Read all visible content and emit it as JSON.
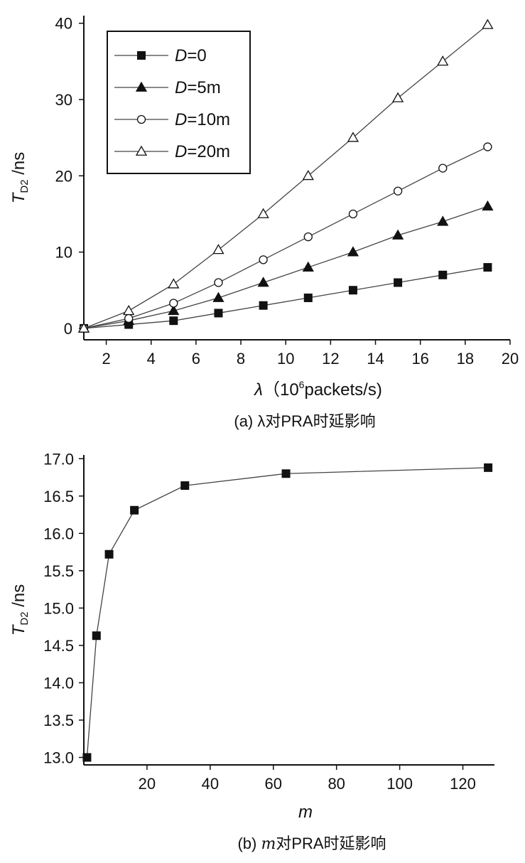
{
  "chart_data": [
    {
      "type": "line",
      "caption": "(a) λ对PRA时延影响",
      "caption_prefix": "(a) ",
      "caption_symbol": "λ",
      "caption_suffix": "对PRA时延影响",
      "xlabel_symbol": "λ",
      "xlabel_unit_pre": "（10",
      "xlabel_unit_sup": "6",
      "xlabel_unit_post": "packets/s)",
      "ylabel_main": "T",
      "ylabel_sub": "D2",
      "ylabel_unit": " /ns",
      "xlim": [
        1,
        20
      ],
      "ylim": [
        -1.5,
        41
      ],
      "xticks": [
        2,
        4,
        6,
        8,
        10,
        12,
        14,
        16,
        18,
        20
      ],
      "yticks": [
        0,
        10,
        20,
        30,
        40
      ],
      "grid": false,
      "legend_position": "top-left",
      "x": [
        1,
        3,
        5,
        7,
        9,
        11,
        13,
        15,
        17,
        19
      ],
      "series": [
        {
          "name": "D=0",
          "legend_var": "D",
          "legend_val": "=0",
          "marker": "square-filled",
          "values": [
            0,
            0.5,
            1,
            2,
            3,
            4,
            5,
            6,
            7,
            8
          ]
        },
        {
          "name": "D=5m",
          "legend_var": "D",
          "legend_val": "=5m",
          "marker": "triangle-filled",
          "values": [
            0,
            1,
            2.3,
            4,
            6,
            8,
            10,
            12.2,
            14,
            16
          ]
        },
        {
          "name": "D=10m",
          "legend_var": "D",
          "legend_val": "=10m",
          "marker": "circle-open",
          "values": [
            0,
            1.3,
            3.3,
            6,
            9,
            12,
            15,
            18,
            21,
            23.8
          ]
        },
        {
          "name": "D=20m",
          "legend_var": "D",
          "legend_val": "=20m",
          "marker": "triangle-open",
          "values": [
            0,
            2.3,
            5.8,
            10.3,
            15,
            20,
            25,
            30.2,
            35,
            39.8
          ]
        }
      ]
    },
    {
      "type": "line",
      "caption": "(b) m对PRA时延影响",
      "caption_prefix": "(b) ",
      "caption_symbol": "m",
      "caption_suffix": "对PRA时延影响",
      "xlabel_symbol": "m",
      "ylabel_main": "T",
      "ylabel_sub": "D2",
      "ylabel_unit": " /ns",
      "xlim": [
        0,
        130
      ],
      "ylim": [
        12.9,
        17.05
      ],
      "xticks": [
        20,
        40,
        60,
        80,
        100,
        120
      ],
      "yticks": [
        "13.0",
        "13.5",
        "14.0",
        "14.5",
        "15.0",
        "15.5",
        "16.0",
        "16.5",
        "17.0"
      ],
      "grid": false,
      "series": [
        {
          "marker": "square-filled",
          "x": [
            1,
            4,
            8,
            16,
            32,
            64,
            128
          ],
          "values": [
            13.0,
            14.63,
            15.72,
            16.31,
            16.64,
            16.8,
            16.88
          ]
        }
      ]
    }
  ]
}
